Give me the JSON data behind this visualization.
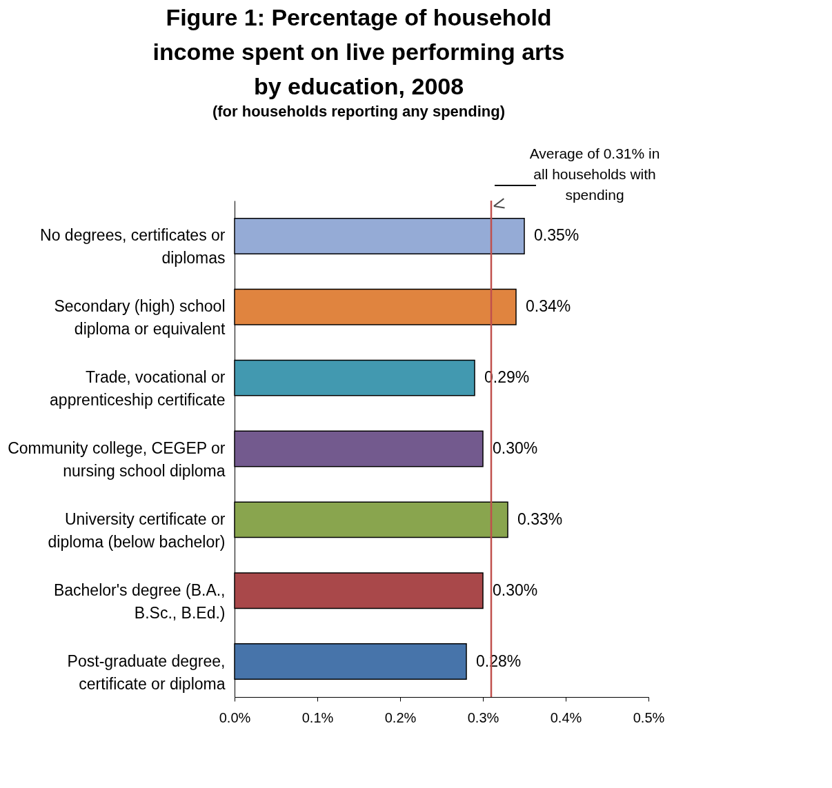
{
  "chart_data": {
    "type": "bar",
    "orientation": "horizontal",
    "title": "Figure 1: Percentage of household income spent on live performing arts by education, 2008",
    "subtitle": "(for households reporting any spending)",
    "categories": [
      "No degrees, certificates or diplomas",
      "Secondary (high) school diploma or equivalent",
      "Trade, vocational or apprenticeship certificate",
      "Community college, CEGEP or nursing school diploma",
      "University certificate or diploma (below bachelor)",
      "Bachelor's degree (B.A., B.Sc., B.Ed.)",
      "Post-graduate degree, certificate or diploma"
    ],
    "values": [
      0.35,
      0.34,
      0.29,
      0.3,
      0.33,
      0.3,
      0.28
    ],
    "value_labels": [
      "0.35%",
      "0.34%",
      "0.29%",
      "0.30%",
      "0.33%",
      "0.30%",
      "0.28%"
    ],
    "colors": [
      "#95abd6",
      "#e0843f",
      "#4299b0",
      "#735a8e",
      "#89a54e",
      "#a9484a",
      "#4774aa"
    ],
    "xlim": [
      0,
      0.5
    ],
    "xticks": [
      {
        "value": 0,
        "label": "0.0%"
      },
      {
        "value": 0.1,
        "label": "0.1%"
      },
      {
        "value": 0.2,
        "label": "0.2%"
      },
      {
        "value": 0.3,
        "label": "0.3%"
      },
      {
        "value": 0.4,
        "label": "0.4%"
      },
      {
        "value": 0.5,
        "label": "0.5%"
      }
    ],
    "ref_lines": [
      {
        "axis": "x",
        "value": 0.31,
        "label": "Average of 0.31% in all households with spending",
        "color": "#c0504d"
      }
    ],
    "grid": false
  }
}
